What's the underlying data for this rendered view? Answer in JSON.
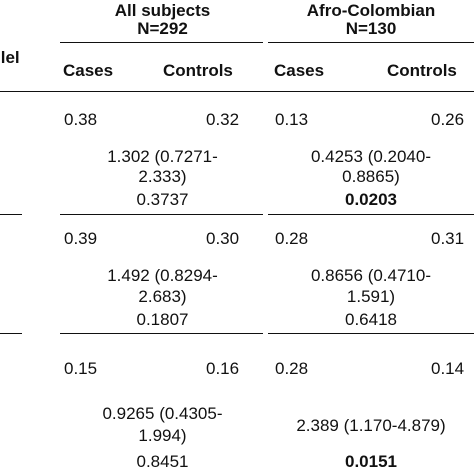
{
  "header": {
    "left_label": "llel",
    "all_subjects": {
      "title": "All subjects",
      "n": "N=292"
    },
    "afro_colombian": {
      "title": "Afro-Colombian",
      "n": "N=130"
    },
    "cases": "Cases",
    "controls": "Controls"
  },
  "rows": [
    {
      "all_cases": "0.38",
      "all_controls": "0.32",
      "afro_cases": "0.13",
      "afro_controls": "0.26",
      "all_or_line1": "1.302 (0.7271-",
      "all_or_line2": "2.333)",
      "all_p": "0.3737",
      "afro_or_line1": "0.4253 (0.2040-",
      "afro_or_line2": "0.8865)",
      "afro_p": "0.0203"
    },
    {
      "all_cases": "0.39",
      "all_controls": "0.30",
      "afro_cases": "0.28",
      "afro_controls": "0.31",
      "all_or_line1": "1.492 (0.8294-",
      "all_or_line2": "2.683)",
      "all_p": "0.1807",
      "afro_or_line1": "0.8656 (0.4710-",
      "afro_or_line2": "1.591)",
      "afro_p": "0.6418"
    },
    {
      "all_cases": "0.15",
      "all_controls": "0.16",
      "afro_cases": "0.28",
      "afro_controls": "0.14",
      "all_or_line1": "0.9265 (0.4305-",
      "all_or_line2": "1.994)",
      "all_p": "0.8451",
      "afro_or": "2.389 (1.170-4.879)",
      "afro_p": "0.0151"
    }
  ]
}
